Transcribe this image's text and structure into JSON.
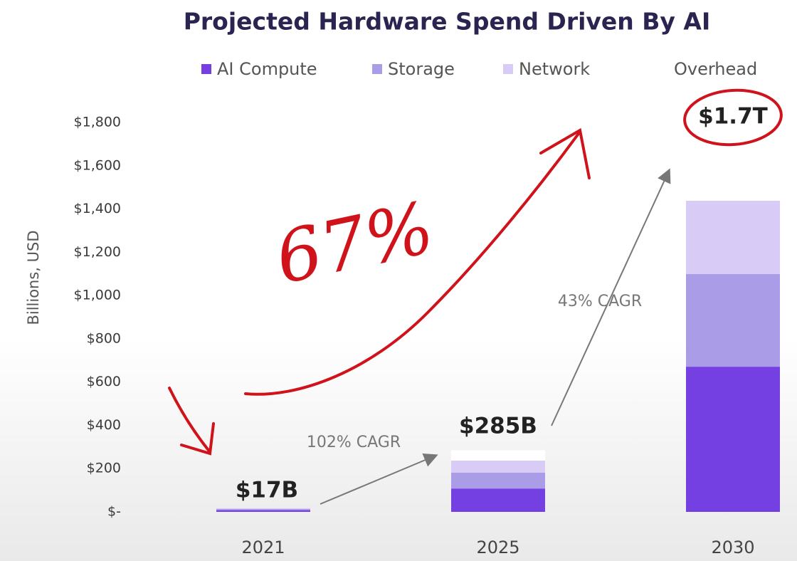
{
  "chart_data": {
    "type": "stacked_bar",
    "title": "Projected Hardware Spend Driven By AI",
    "y_label": "Billions, USD",
    "categories": [
      "2021",
      "2025",
      "2030"
    ],
    "series": [
      {
        "name": "AI Compute",
        "color": "#7440e2",
        "values": [
          8,
          108,
          671
        ]
      },
      {
        "name": "Storage",
        "color": "#aa9ce6",
        "values": [
          5,
          73,
          428
        ]
      },
      {
        "name": "Network",
        "color": "#d8cbf6",
        "values": [
          4,
          56,
          339
        ]
      },
      {
        "name": "Overhead",
        "color": "#ffffff",
        "values": [
          0,
          48,
          262
        ]
      }
    ],
    "ylim": [
      0,
      1800
    ],
    "yticks": [
      {
        "value": 0,
        "label": "$-"
      },
      {
        "value": 200,
        "label": "$200"
      },
      {
        "value": 400,
        "label": "$400"
      },
      {
        "value": 600,
        "label": "$600"
      },
      {
        "value": 800,
        "label": "$800"
      },
      {
        "value": 1000,
        "label": "$1,000"
      },
      {
        "value": 1200,
        "label": "$1,200"
      },
      {
        "value": 1400,
        "label": "$1,400"
      },
      {
        "value": 1600,
        "label": "$1,600"
      },
      {
        "value": 1800,
        "label": "$1,800"
      }
    ],
    "grid": false,
    "annotations": [
      "$17B",
      "102% CAGR",
      "$285B",
      "43% CAGR",
      "$1.7T"
    ],
    "handwritten": "67%"
  }
}
